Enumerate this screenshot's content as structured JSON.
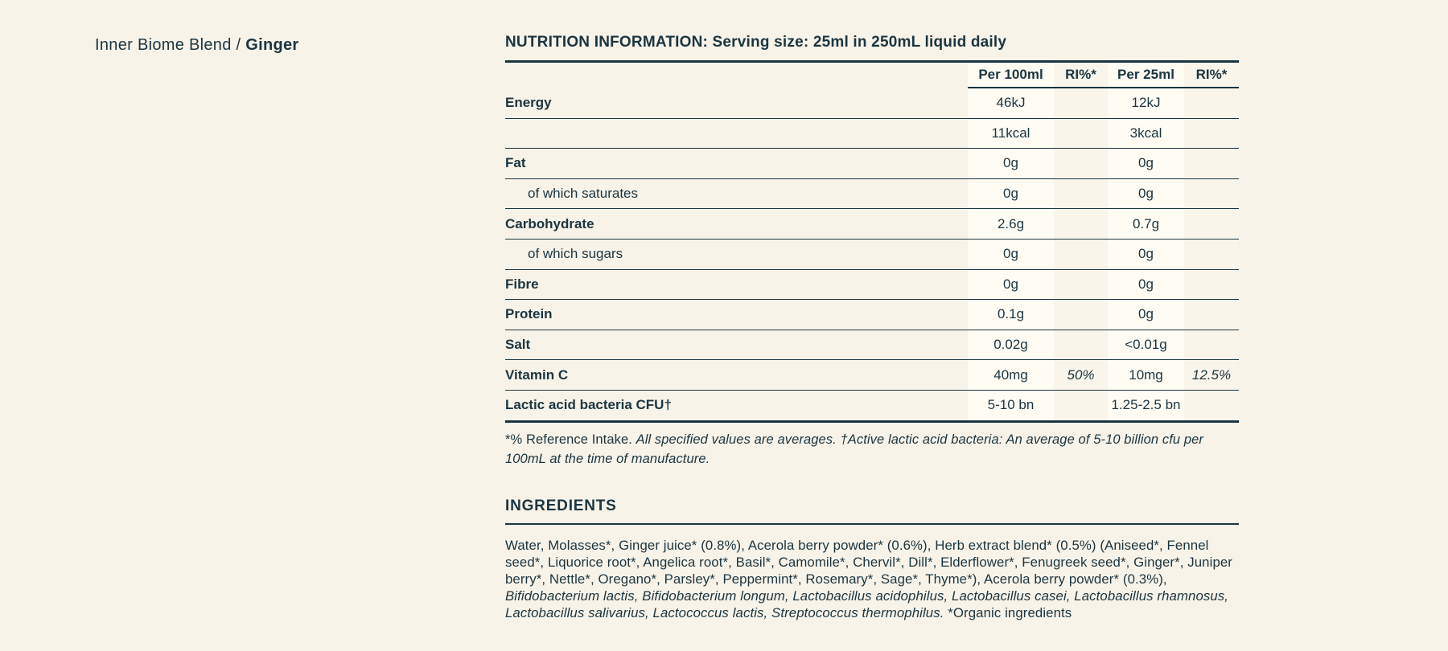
{
  "colors": {
    "background": "#f8f3e9",
    "text": "#1b3540",
    "column_highlight": "#fffcf4",
    "column_tint": "#faf5eb"
  },
  "product": {
    "line_name": "Inner Biome Blend",
    "separator": " / ",
    "variant": "Ginger"
  },
  "nutrition": {
    "title": "NUTRITION INFORMATION: Serving size: 25ml in 250mL liquid daily",
    "columns": [
      "Per 100ml",
      "RI%*",
      "Per 25ml",
      "RI%*"
    ],
    "rows": [
      {
        "label": "Energy",
        "indent": false,
        "per_100ml": "46kJ",
        "ri_100ml": "",
        "per_25ml": "12kJ",
        "ri_25ml": ""
      },
      {
        "label": "",
        "indent": false,
        "per_100ml": "11kcal",
        "ri_100ml": "",
        "per_25ml": "3kcal",
        "ri_25ml": ""
      },
      {
        "label": "Fat",
        "indent": false,
        "per_100ml": "0g",
        "ri_100ml": "",
        "per_25ml": "0g",
        "ri_25ml": ""
      },
      {
        "label": "of which saturates",
        "indent": true,
        "per_100ml": "0g",
        "ri_100ml": "",
        "per_25ml": "0g",
        "ri_25ml": ""
      },
      {
        "label": "Carbohydrate",
        "indent": false,
        "per_100ml": "2.6g",
        "ri_100ml": "",
        "per_25ml": "0.7g",
        "ri_25ml": ""
      },
      {
        "label": "of which sugars",
        "indent": true,
        "per_100ml": "0g",
        "ri_100ml": "",
        "per_25ml": "0g",
        "ri_25ml": ""
      },
      {
        "label": "Fibre",
        "indent": false,
        "per_100ml": "0g",
        "ri_100ml": "",
        "per_25ml": "0g",
        "ri_25ml": ""
      },
      {
        "label": "Protein",
        "indent": false,
        "per_100ml": "0.1g",
        "ri_100ml": "",
        "per_25ml": "0g",
        "ri_25ml": ""
      },
      {
        "label": "Salt",
        "indent": false,
        "per_100ml": "0.02g",
        "ri_100ml": "",
        "per_25ml": "<0.01g",
        "ri_25ml": ""
      },
      {
        "label": "Vitamin C",
        "indent": false,
        "per_100ml": "40mg",
        "ri_100ml": "50%",
        "per_25ml": "10mg",
        "ri_25ml": "12.5%"
      },
      {
        "label": "Lactic acid bacteria CFU†",
        "indent": false,
        "per_100ml": "5-10 bn",
        "ri_100ml": "",
        "per_25ml": "1.25-2.5 bn",
        "ri_25ml": ""
      }
    ],
    "footnote_normal": "*% Reference Intake. ",
    "footnote_italic": "All specified values are averages. †Active lactic acid bacteria: An average of 5-10 billion cfu per 100mL at the time of manufacture."
  },
  "ingredients": {
    "title": "INGREDIENTS",
    "text_normal_1": "Water, Molasses*, Ginger juice* (0.8%), Acerola berry powder* (0.6%), Herb extract blend* (0.5%) (Aniseed*, Fennel seed*, Liquorice root*, Angelica root*, Basil*, Camomile*, Chervil*, Dill*, Elderflower*, Fenugreek seed*, Ginger*, Juniper berry*, Nettle*, Oregano*, Parsley*, Peppermint*, Rosemary*, Sage*, Thyme*), Acerola berry powder* (0.3%), ",
    "text_italic": "Bifidobacterium lactis, Bifidobacterium longum, Lactobacillus acidophilus, Lactobacillus casei, Lactobacillus rhamnosus, Lactobacillus salivarius, Lactococcus lactis, Streptococcus thermophilus.",
    "text_normal_2": " *Organic ingredients"
  }
}
